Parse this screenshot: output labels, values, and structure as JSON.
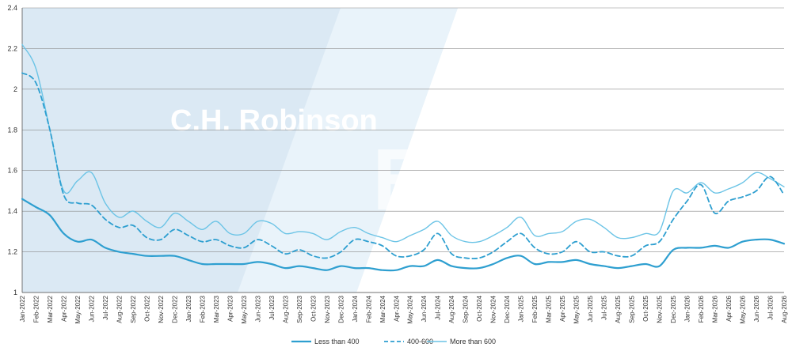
{
  "chart_data": {
    "type": "line",
    "title": "",
    "xlabel": "",
    "ylabel": "",
    "ylim": [
      1,
      2.4
    ],
    "yticks": [
      "1",
      "1.2",
      "1.4",
      "1.6",
      "1.8",
      "2",
      "2.2",
      "2.4"
    ],
    "grid": true,
    "legend_position": "bottom-center",
    "categories": [
      "Jan-2022",
      "Feb-2022",
      "Mar-2022",
      "Apr-2022",
      "May-2022",
      "Jun-2022",
      "Jul-2022",
      "Aug-2022",
      "Sep-2022",
      "Oct-2022",
      "Nov-2022",
      "Dec-2022",
      "Jan-2023",
      "Feb-2023",
      "Mar-2023",
      "Apr-2023",
      "May-2023",
      "Jun-2023",
      "Jul-2023",
      "Aug-2023",
      "Sep-2023",
      "Oct-2023",
      "Nov-2023",
      "Dec-2023",
      "Jan-2024",
      "Feb-2024",
      "Mar-2024",
      "Apr-2024",
      "May-2024",
      "Jun-2024",
      "Jul-2024",
      "Aug-2024",
      "Sep-2024",
      "Oct-2024",
      "Nov-2024",
      "Dec-2024",
      "Jan-2025",
      "Feb-2025",
      "Mar-2025",
      "Apr-2025",
      "May-2025",
      "Jun-2025",
      "Jul-2025",
      "Aug-2025",
      "Sep-2025",
      "Oct-2025",
      "Nov-2025",
      "Dec-2025",
      "Jan-2026",
      "Feb-2026",
      "Mar-2026",
      "Apr-2026",
      "May-2026",
      "Jun-2026",
      "Jul-2026",
      "Aug-2026"
    ],
    "series": [
      {
        "name": "Less than 400",
        "style": "solid-thick",
        "color": "#2e9fd0",
        "values": [
          1.46,
          1.42,
          1.38,
          1.29,
          1.25,
          1.26,
          1.22,
          1.2,
          1.19,
          1.18,
          1.18,
          1.18,
          1.16,
          1.14,
          1.14,
          1.14,
          1.14,
          1.15,
          1.14,
          1.12,
          1.13,
          1.12,
          1.11,
          1.13,
          1.12,
          1.12,
          1.11,
          1.11,
          1.13,
          1.13,
          1.16,
          1.13,
          1.12,
          1.12,
          1.14,
          1.17,
          1.18,
          1.14,
          1.15,
          1.15,
          1.16,
          1.14,
          1.13,
          1.12,
          1.13,
          1.14,
          1.13,
          1.21,
          1.22,
          1.22,
          1.23,
          1.22,
          1.25,
          1.26,
          1.26,
          1.24
        ]
      },
      {
        "name": "400-600",
        "style": "dashed",
        "color": "#2e9fd0",
        "values": [
          2.08,
          2.03,
          1.8,
          1.48,
          1.44,
          1.43,
          1.36,
          1.32,
          1.33,
          1.27,
          1.26,
          1.31,
          1.28,
          1.25,
          1.26,
          1.23,
          1.22,
          1.26,
          1.23,
          1.19,
          1.21,
          1.18,
          1.17,
          1.2,
          1.26,
          1.25,
          1.23,
          1.18,
          1.18,
          1.21,
          1.29,
          1.19,
          1.17,
          1.17,
          1.2,
          1.25,
          1.29,
          1.22,
          1.19,
          1.2,
          1.25,
          1.2,
          1.2,
          1.18,
          1.18,
          1.23,
          1.25,
          1.36,
          1.45,
          1.53,
          1.39,
          1.45,
          1.47,
          1.5,
          1.57,
          1.48
        ]
      },
      {
        "name": "More than 600",
        "style": "solid-thin",
        "color": "#6cc4e6",
        "values": [
          2.22,
          2.1,
          1.8,
          1.5,
          1.55,
          1.59,
          1.44,
          1.37,
          1.4,
          1.35,
          1.32,
          1.39,
          1.35,
          1.31,
          1.35,
          1.29,
          1.29,
          1.35,
          1.34,
          1.29,
          1.3,
          1.29,
          1.26,
          1.3,
          1.32,
          1.29,
          1.27,
          1.25,
          1.28,
          1.31,
          1.35,
          1.28,
          1.25,
          1.25,
          1.28,
          1.32,
          1.37,
          1.28,
          1.29,
          1.3,
          1.35,
          1.36,
          1.32,
          1.27,
          1.27,
          1.29,
          1.3,
          1.5,
          1.49,
          1.54,
          1.49,
          1.51,
          1.54,
          1.59,
          1.56,
          1.52
        ]
      }
    ]
  },
  "watermark": {
    "line1": "C.H. Robinson",
    "line2": "Edge"
  },
  "colors": {
    "background_panel": "#dce9f3",
    "grid": "#8a8a8a",
    "axis": "#555555"
  }
}
